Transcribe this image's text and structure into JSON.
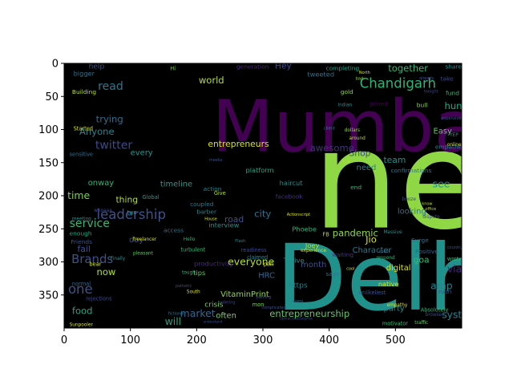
{
  "chart_data": {
    "type": "wordcloud",
    "background": "#000000",
    "x_ticks": [
      0,
      100,
      200,
      300,
      400,
      500
    ],
    "y_ticks": [
      0,
      50,
      100,
      150,
      200,
      250,
      300,
      350
    ],
    "xlim": [
      0,
      600
    ],
    "ylim_inverted": [
      0,
      400
    ],
    "words": [
      {
        "text": "new",
        "x": 375,
        "y": 248,
        "size": 205,
        "color": "#8fd744"
      },
      {
        "text": "Delhi",
        "x": 320,
        "y": 372,
        "size": 138,
        "color": "#21918c"
      },
      {
        "text": "Mumbai",
        "x": 223,
        "y": 133,
        "size": 108,
        "color": "#440154"
      },
      {
        "text": "Chandigarh",
        "x": 446,
        "y": 37,
        "size": 20,
        "color": "#2fb47c"
      },
      {
        "text": "leadership",
        "x": 49,
        "y": 235,
        "size": 20,
        "color": "#3b528b"
      },
      {
        "text": "Brands",
        "x": 11,
        "y": 302,
        "size": 18,
        "color": "#3b528b"
      },
      {
        "text": "read",
        "x": 51,
        "y": 40,
        "size": 17,
        "color": "#29788e"
      },
      {
        "text": "service",
        "x": 8,
        "y": 247,
        "size": 17,
        "color": "#35b779"
      },
      {
        "text": "one",
        "x": 6,
        "y": 348,
        "size": 20,
        "color": "#3b528b"
      },
      {
        "text": "twitter",
        "x": 47,
        "y": 129,
        "size": 17,
        "color": "#3e4989"
      },
      {
        "text": "time",
        "x": 5,
        "y": 205,
        "size": 15,
        "color": "#7ad151"
      },
      {
        "text": "trying",
        "x": 48,
        "y": 89,
        "size": 14,
        "color": "#2e6e8e"
      },
      {
        "text": "Anyone",
        "x": 23,
        "y": 108,
        "size": 14,
        "color": "#25838e"
      },
      {
        "text": "market",
        "x": 175,
        "y": 383,
        "size": 15,
        "color": "#31688e"
      },
      {
        "text": "entrepreneurship",
        "x": 310,
        "y": 383,
        "size": 14,
        "color": "#5ec962"
      },
      {
        "text": "entrepreneurs",
        "x": 217,
        "y": 126,
        "size": 13,
        "color": "#d8e219"
      },
      {
        "text": "everyone",
        "x": 247,
        "y": 305,
        "size": 15,
        "color": "#b5de2b"
      },
      {
        "text": "pandemic",
        "x": 405,
        "y": 261,
        "size": 14,
        "color": "#8fd744"
      },
      {
        "text": "together",
        "x": 489,
        "y": 12,
        "size": 14,
        "color": "#35b779"
      },
      {
        "text": "world",
        "x": 203,
        "y": 30,
        "size": 14,
        "color": "#b5de2b"
      },
      {
        "text": "awesome",
        "x": 371,
        "y": 133,
        "size": 14,
        "color": "#46327e"
      },
      {
        "text": "food",
        "x": 12,
        "y": 379,
        "size": 14,
        "color": "#22a884"
      },
      {
        "text": "will",
        "x": 152,
        "y": 395,
        "size": 15,
        "color": "#22a884"
      },
      {
        "text": "hunting",
        "x": 574,
        "y": 69,
        "size": 14,
        "color": "#22a884"
      },
      {
        "text": "see",
        "x": 556,
        "y": 187,
        "size": 15,
        "color": "#21918c"
      },
      {
        "text": "via",
        "x": 578,
        "y": 316,
        "size": 15,
        "color": "#482878"
      },
      {
        "text": "amp",
        "x": 553,
        "y": 341,
        "size": 15,
        "color": "#25838e"
      },
      {
        "text": "system",
        "x": 570,
        "y": 385,
        "size": 15,
        "color": "#25838e"
      },
      {
        "text": "team",
        "x": 482,
        "y": 150,
        "size": 13,
        "color": "#21918c"
      },
      {
        "text": "Easy",
        "x": 557,
        "y": 106,
        "size": 12,
        "color": "#5ec962"
      },
      {
        "text": "Jio",
        "x": 455,
        "y": 271,
        "size": 14,
        "color": "#d8e219"
      },
      {
        "text": "goa",
        "x": 527,
        "y": 301,
        "size": 13,
        "color": "#35b779"
      },
      {
        "text": "Shop",
        "x": 430,
        "y": 140,
        "size": 13,
        "color": "#3e4989"
      },
      {
        "text": "need",
        "x": 441,
        "y": 161,
        "size": 12,
        "color": "#25838e"
      },
      {
        "text": "Character",
        "x": 435,
        "y": 286,
        "size": 12,
        "color": "#2a788e"
      },
      {
        "text": "VitaminPrint",
        "x": 236,
        "y": 353,
        "size": 12,
        "color": "#8fd744"
      },
      {
        "text": "road",
        "x": 242,
        "y": 240,
        "size": 13,
        "color": "#3b528b"
      },
      {
        "text": "city",
        "x": 287,
        "y": 232,
        "size": 14,
        "color": "#2c728e"
      },
      {
        "text": "timeline",
        "x": 145,
        "y": 186,
        "size": 12,
        "color": "#1f9f88"
      },
      {
        "text": "every",
        "x": 100,
        "y": 139,
        "size": 12,
        "color": "#21918c"
      },
      {
        "text": "onway",
        "x": 36,
        "y": 184,
        "size": 12,
        "color": "#2fb47c"
      },
      {
        "text": "thing",
        "x": 78,
        "y": 210,
        "size": 13,
        "color": "#b5de2b"
      },
      {
        "text": "fail",
        "x": 20,
        "y": 285,
        "size": 13,
        "color": "#3b528b"
      },
      {
        "text": "now",
        "x": 49,
        "y": 320,
        "size": 14,
        "color": "#b5de2b"
      },
      {
        "text": "day",
        "x": 98,
        "y": 270,
        "size": 12,
        "color": "#3b528b"
      },
      {
        "text": "help",
        "x": 37,
        "y": 8,
        "size": 11,
        "color": "#3b528b"
      },
      {
        "text": "bigger",
        "x": 14,
        "y": 19,
        "size": 10,
        "color": "#2c728e"
      },
      {
        "text": "Hey",
        "x": 318,
        "y": 8,
        "size": 13,
        "color": "#3e4989"
      },
      {
        "text": "often",
        "x": 229,
        "y": 385,
        "size": 12,
        "color": "#7ad151"
      },
      {
        "text": "crisis",
        "x": 212,
        "y": 368,
        "size": 11,
        "color": "#7ad151"
      },
      {
        "text": "productivity",
        "x": 196,
        "y": 306,
        "size": 10,
        "color": "#482878"
      },
      {
        "text": "month",
        "x": 357,
        "y": 308,
        "size": 12,
        "color": "#3b528b"
      },
      {
        "text": "party",
        "x": 482,
        "y": 374,
        "size": 12,
        "color": "#21918c"
      },
      {
        "text": "looking",
        "x": 503,
        "y": 227,
        "size": 12,
        "color": "#2c728e"
      },
      {
        "text": "digital",
        "x": 486,
        "y": 313,
        "size": 12,
        "color": "#d8e219"
      },
      {
        "text": "HRC",
        "x": 293,
        "y": 324,
        "size": 12,
        "color": "#31688e"
      },
      {
        "text": "https",
        "x": 339,
        "y": 339,
        "size": 11,
        "color": "#25838e"
      },
      {
        "text": "tips",
        "x": 195,
        "y": 320,
        "size": 10,
        "color": "#5ec962"
      },
      {
        "text": "interview",
        "x": 218,
        "y": 248,
        "size": 10,
        "color": "#21918c"
      },
      {
        "text": "Thrive",
        "x": 331,
        "y": 301,
        "size": 10,
        "color": "#21918c"
      },
      {
        "text": "Joey",
        "x": 364,
        "y": 279,
        "size": 10,
        "color": "#b5de2b"
      },
      {
        "text": "Phoebe",
        "x": 344,
        "y": 254,
        "size": 10,
        "color": "#2fb47c"
      },
      {
        "text": "haircut",
        "x": 325,
        "y": 184,
        "size": 10,
        "color": "#21918c"
      },
      {
        "text": "facebook",
        "x": 319,
        "y": 204,
        "size": 9,
        "color": "#46327e"
      },
      {
        "text": "platform",
        "x": 274,
        "y": 165,
        "size": 10,
        "color": "#22a884"
      },
      {
        "text": "generation",
        "x": 260,
        "y": 8,
        "size": 9,
        "color": "#482878"
      },
      {
        "text": "action",
        "x": 210,
        "y": 193,
        "size": 9,
        "color": "#25838e"
      },
      {
        "text": "coupled",
        "x": 190,
        "y": 216,
        "size": 9,
        "color": "#29788e"
      },
      {
        "text": "barber",
        "x": 200,
        "y": 227,
        "size": 9,
        "color": "#25838e"
      },
      {
        "text": "completing",
        "x": 395,
        "y": 10,
        "size": 9,
        "color": "#1fa187"
      },
      {
        "text": "Surge",
        "x": 524,
        "y": 270,
        "size": 9,
        "color": "#2c728e"
      },
      {
        "text": "Positive",
        "x": 530,
        "y": 287,
        "size": 9,
        "color": "#31688e"
      },
      {
        "text": "native",
        "x": 474,
        "y": 337,
        "size": 10,
        "color": "#d8e219"
      },
      {
        "text": "confirmations",
        "x": 493,
        "y": 165,
        "size": 9,
        "color": "#29788e"
      },
      {
        "text": "empathetic",
        "x": 560,
        "y": 129,
        "size": 9,
        "color": "#25838e"
      },
      {
        "text": "share",
        "x": 575,
        "y": 8,
        "size": 9,
        "color": "#21918c"
      },
      {
        "text": "take",
        "x": 568,
        "y": 26,
        "size": 9,
        "color": "#3e4989"
      },
      {
        "text": "fund",
        "x": 576,
        "y": 48,
        "size": 9,
        "color": "#35b779"
      },
      {
        "text": "gold",
        "x": 417,
        "y": 46,
        "size": 9,
        "color": "#8fd744"
      },
      {
        "text": "bull",
        "x": 532,
        "y": 66,
        "size": 9,
        "color": "#8fd744"
      },
      {
        "text": "Joined",
        "x": 461,
        "y": 64,
        "size": 9,
        "color": "#440154"
      },
      {
        "text": "Friends",
        "x": 10,
        "y": 273,
        "size": 9,
        "color": "#3b528b"
      },
      {
        "text": "enough",
        "x": 8,
        "y": 260,
        "size": 9,
        "color": "#22a884"
      },
      {
        "text": "normal",
        "x": 12,
        "y": 336,
        "size": 8,
        "color": "#31688e"
      },
      {
        "text": "rejections",
        "x": 33,
        "y": 358,
        "size": 8,
        "color": "#3e4989"
      },
      {
        "text": "Building",
        "x": 12,
        "y": 46,
        "size": 9,
        "color": "#b5de2b"
      },
      {
        "text": "Started",
        "x": 14,
        "y": 101,
        "size": 8,
        "color": "#d8e219"
      },
      {
        "text": "sensitive",
        "x": 8,
        "y": 140,
        "size": 8,
        "color": "#2c728e"
      },
      {
        "text": "Global",
        "x": 118,
        "y": 205,
        "size": 8,
        "color": "#1f9f88"
      },
      {
        "text": "two",
        "x": 95,
        "y": 228,
        "size": 8,
        "color": "#21918c"
      },
      {
        "text": "bear",
        "x": 38,
        "y": 306,
        "size": 8,
        "color": "#d8e219"
      },
      {
        "text": "access",
        "x": 150,
        "y": 255,
        "size": 9,
        "color": "#29788e"
      },
      {
        "text": "freelancer",
        "x": 104,
        "y": 268,
        "size": 7,
        "color": "#d8e219"
      },
      {
        "text": "turbulent",
        "x": 176,
        "y": 284,
        "size": 8,
        "color": "#35b779"
      },
      {
        "text": "readiness",
        "x": 267,
        "y": 285,
        "size": 8,
        "color": "#3e4989"
      },
      {
        "text": "claimed",
        "x": 276,
        "y": 296,
        "size": 8,
        "color": "#25838e"
      },
      {
        "text": "pan",
        "x": 301,
        "y": 306,
        "size": 8,
        "color": "#d8e219"
      },
      {
        "text": "mon",
        "x": 284,
        "y": 367,
        "size": 8,
        "color": "#7ad151"
      },
      {
        "text": "experience",
        "x": 357,
        "y": 285,
        "size": 7,
        "color": "#d8e219"
      },
      {
        "text": "waiting",
        "x": 404,
        "y": 292,
        "size": 9,
        "color": "#46327e"
      },
      {
        "text": "respond",
        "x": 471,
        "y": 296,
        "size": 7,
        "color": "#2fb47c"
      },
      {
        "text": "unlikeliest",
        "x": 445,
        "y": 349,
        "size": 8,
        "color": "#3b528b"
      },
      {
        "text": "rush",
        "x": 565,
        "y": 348,
        "size": 9,
        "color": "#3e4989"
      },
      {
        "text": "wrote",
        "x": 578,
        "y": 298,
        "size": 8,
        "color": "#35b779"
      },
      {
        "text": "Absolutely",
        "x": 538,
        "y": 375,
        "size": 8,
        "color": "#2fb47c"
      },
      {
        "text": "dispute",
        "x": 541,
        "y": 234,
        "size": 7,
        "color": "#3e4989"
      },
      {
        "text": "dollars",
        "x": 423,
        "y": 103,
        "size": 7,
        "color": "#8fd744"
      },
      {
        "text": "around",
        "x": 430,
        "y": 115,
        "size": 7,
        "color": "#b5de2b"
      },
      {
        "text": "end",
        "x": 432,
        "y": 190,
        "size": 9,
        "color": "#35b779"
      },
      {
        "text": "low",
        "x": 420,
        "y": 150,
        "size": 7,
        "color": "#b5de2b"
      },
      {
        "text": "FB",
        "x": 390,
        "y": 261,
        "size": 8,
        "color": "#b5de2b"
      },
      {
        "text": "says",
        "x": 395,
        "y": 321,
        "size": 9,
        "color": "#2c728e"
      },
      {
        "text": "Indian",
        "x": 413,
        "y": 65,
        "size": 7,
        "color": "#21918c"
      },
      {
        "text": "YEP",
        "x": 582,
        "y": 110,
        "size": 7,
        "color": "#21918c"
      },
      {
        "text": "online",
        "x": 578,
        "y": 125,
        "size": 7,
        "color": "#d8e219"
      },
      {
        "text": "Hi",
        "x": 160,
        "y": 10,
        "size": 8,
        "color": "#7ad151"
      },
      {
        "text": "Hello",
        "x": 180,
        "y": 268,
        "size": 7,
        "color": "#35b779"
      },
      {
        "text": "tough",
        "x": 178,
        "y": 318,
        "size": 7,
        "color": "#35b779"
      },
      {
        "text": "South",
        "x": 185,
        "y": 347,
        "size": 7,
        "color": "#d8e219"
      },
      {
        "text": "pleasant",
        "x": 104,
        "y": 289,
        "size": 7,
        "color": "#5ec962"
      },
      {
        "text": "Finally",
        "x": 70,
        "y": 297,
        "size": 7,
        "color": "#21918c"
      },
      {
        "text": "whoaaa",
        "x": 45,
        "y": 224,
        "size": 7,
        "color": "#3e4989"
      },
      {
        "text": "meeting",
        "x": 12,
        "y": 237,
        "size": 7,
        "color": "#21918c"
      },
      {
        "text": "Sunpooler",
        "x": 8,
        "y": 397,
        "size": 7,
        "color": "#d8e219"
      },
      {
        "text": "motivator",
        "x": 480,
        "y": 396,
        "size": 8,
        "color": "#35b779"
      },
      {
        "text": "traffic",
        "x": 529,
        "y": 394,
        "size": 7,
        "color": "#5ec962"
      },
      {
        "text": "browser",
        "x": 545,
        "y": 382,
        "size": 7,
        "color": "#3e4989"
      },
      {
        "text": "empathy",
        "x": 487,
        "y": 367,
        "size": 7,
        "color": "#d8e219"
      },
      {
        "text": "Massive",
        "x": 482,
        "y": 257,
        "size": 7,
        "color": "#21918c"
      },
      {
        "text": "booze",
        "x": 510,
        "y": 207,
        "size": 7,
        "color": "#3e4989"
      },
      {
        "text": "Actionscript",
        "x": 336,
        "y": 230,
        "size": 6,
        "color": "#d8e219"
      },
      {
        "text": "meeks",
        "x": 219,
        "y": 148,
        "size": 6,
        "color": "#3b528b"
      },
      {
        "text": "tweeted",
        "x": 367,
        "y": 20,
        "size": 10,
        "color": "#2c728e"
      },
      {
        "text": "client",
        "x": 392,
        "y": 100,
        "size": 6,
        "color": "#25838e"
      },
      {
        "text": "House",
        "x": 212,
        "y": 237,
        "size": 6,
        "color": "#d8e219"
      },
      {
        "text": "Flash",
        "x": 258,
        "y": 270,
        "size": 6,
        "color": "#25838e"
      },
      {
        "text": "ordering",
        "x": 233,
        "y": 363,
        "size": 6,
        "color": "#3e4989"
      },
      {
        "text": "parking",
        "x": 290,
        "y": 355,
        "size": 6,
        "color": "#3e4989"
      },
      {
        "text": "OperaCoastSurprise",
        "x": 325,
        "y": 387,
        "size": 5,
        "color": "#3b528b"
      },
      {
        "text": "Give",
        "x": 226,
        "y": 199,
        "size": 8,
        "color": "#b5de2b"
      },
      {
        "text": "expensive",
        "x": 569,
        "y": 85,
        "size": 6,
        "color": "#3b528b"
      },
      {
        "text": "tonight",
        "x": 543,
        "y": 44,
        "size": 6,
        "color": "#3e4989"
      },
      {
        "text": "already",
        "x": 536,
        "y": 24,
        "size": 6,
        "color": "#3b528b"
      },
      {
        "text": "North",
        "x": 445,
        "y": 16,
        "size": 6,
        "color": "#d8e219"
      },
      {
        "text": "bad",
        "x": 440,
        "y": 25,
        "size": 6,
        "color": "#8fd744"
      },
      {
        "text": "spent",
        "x": 475,
        "y": 286,
        "size": 6,
        "color": "#2c728e"
      },
      {
        "text": "country",
        "x": 578,
        "y": 280,
        "size": 6,
        "color": "#3b528b"
      },
      {
        "text": "know",
        "x": 540,
        "y": 214,
        "size": 6,
        "color": "#b5de2b"
      },
      {
        "text": "office",
        "x": 545,
        "y": 222,
        "size": 6,
        "color": "#b5de2b"
      },
      {
        "text": "cool",
        "x": 426,
        "y": 312,
        "size": 6,
        "color": "#d8e219"
      },
      {
        "text": "every",
        "x": 344,
        "y": 361,
        "size": 6,
        "color": "#2c728e"
      },
      {
        "text": "complicated",
        "x": 298,
        "y": 371,
        "size": 6,
        "color": "#3b528b"
      },
      {
        "text": "fictional",
        "x": 157,
        "y": 380,
        "size": 6,
        "color": "#2c728e"
      },
      {
        "text": "understand",
        "x": 210,
        "y": 392,
        "size": 5,
        "color": "#3b528b"
      },
      {
        "text": "pathetic",
        "x": 168,
        "y": 338,
        "size": 6,
        "color": "#3e4989"
      }
    ]
  }
}
